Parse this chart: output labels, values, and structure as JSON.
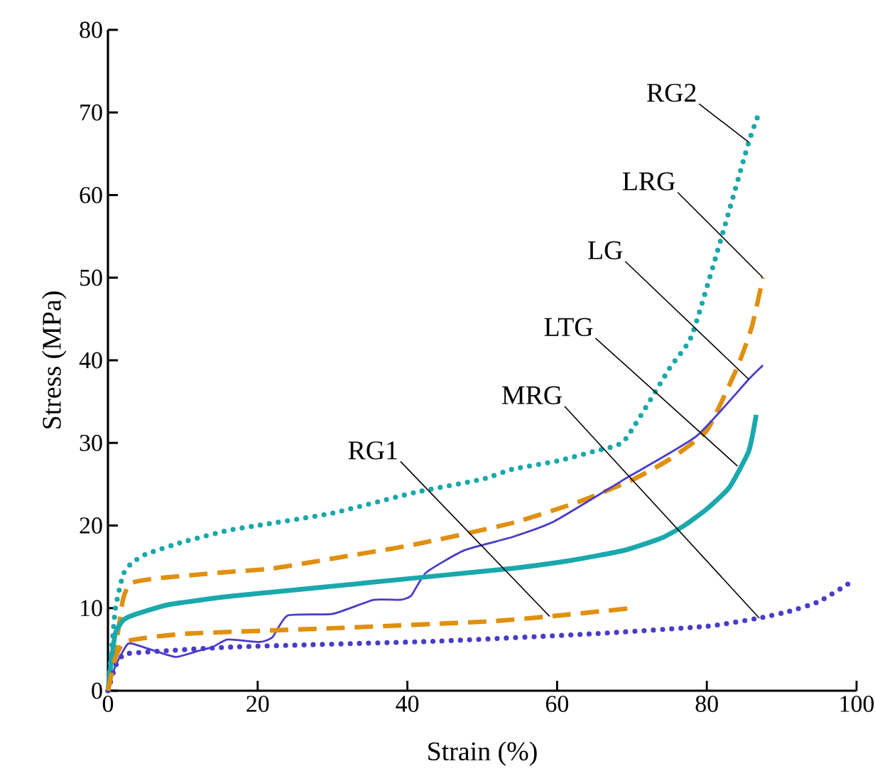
{
  "chart_data": {
    "type": "line",
    "xlabel": "Strain (%)",
    "ylabel": "Stress (MPa)",
    "xlim": [
      0,
      100
    ],
    "ylim": [
      0,
      80
    ],
    "xticks": [
      0,
      20,
      40,
      60,
      80,
      100
    ],
    "yticks": [
      0,
      10,
      20,
      30,
      40,
      50,
      60,
      70,
      80
    ],
    "grid": false,
    "series": [
      {
        "color": "#1aa8ac",
        "line_style": "dotted",
        "x": [
          0,
          0.5,
          1,
          2,
          3,
          5,
          10,
          16,
          20,
          30,
          41,
          50,
          54,
          60,
          65,
          69,
          75,
          78,
          82,
          85.6,
          87
        ],
        "values": [
          0,
          5,
          10,
          14,
          15.3,
          16.5,
          18,
          19.4,
          20,
          21.5,
          24,
          25.6,
          26.8,
          27.8,
          29,
          30.3,
          39,
          43,
          55,
          66.4,
          70
        ]
      },
      {
        "color": "#e0900f",
        "line_style": "dashed",
        "x": [
          0,
          1,
          2,
          3,
          6.5,
          15,
          22,
          30,
          41,
          54,
          63,
          70,
          75,
          80,
          84,
          86,
          87.5
        ],
        "values": [
          0,
          5,
          11,
          13,
          13.6,
          14.3,
          14.8,
          16,
          17.7,
          20.3,
          22.9,
          25.5,
          28,
          31.5,
          39,
          44,
          50
        ]
      },
      {
        "color": "#4a3cc8",
        "line_style": "solid",
        "x": [
          0,
          1,
          2.7,
          5,
          9,
          12,
          14,
          16,
          20.3,
          22,
          24,
          30,
          35.5,
          39,
          40.5,
          42.5,
          47.6,
          54,
          59.6,
          69,
          78.6,
          85.6,
          87.5
        ],
        "values": [
          0,
          3,
          5.7,
          5.2,
          4.1,
          4.8,
          5.3,
          6.2,
          5.9,
          6.5,
          9.1,
          9.3,
          11,
          11,
          11.5,
          14.3,
          17,
          18.6,
          20.5,
          25.6,
          30.8,
          37.7,
          39.4
        ]
      },
      {
        "color": "#1aa8ac",
        "line_style": "solid",
        "x": [
          0,
          0.5,
          1,
          2,
          3.2,
          8,
          16,
          25,
          35,
          45,
          54,
          62,
          69,
          74,
          77,
          80,
          83,
          85.6,
          86.6
        ],
        "values": [
          0,
          4,
          7,
          8.5,
          9.1,
          10.4,
          11.4,
          12.2,
          13.1,
          14,
          14.8,
          15.8,
          17,
          18.5,
          20,
          22,
          24.6,
          29,
          33.4
        ]
      },
      {
        "color": "#4a3cc8",
        "line_style": "dotted",
        "x": [
          0,
          1,
          2,
          3.8,
          17,
          44,
          65,
          80,
          87,
          91,
          95,
          99
        ],
        "values": [
          0,
          3,
          4.3,
          4.6,
          5.3,
          6,
          6.9,
          7.8,
          8.8,
          9.6,
          10.8,
          13
        ]
      },
      {
        "color": "#e0900f",
        "line_style": "dashed",
        "x": [
          0,
          1,
          2.5,
          10.4,
          31,
          51,
          59,
          70
        ],
        "values": [
          0,
          4,
          6,
          6.9,
          7.6,
          8.4,
          9,
          10
        ]
      }
    ],
    "annotations": [
      {
        "text": "RG2",
        "x": 85.6,
        "y": 66.4
      },
      {
        "text": "LRG",
        "x": 87.5,
        "y": 50
      },
      {
        "text": "LG",
        "x": 85.6,
        "y": 37.7
      },
      {
        "text": "LTG",
        "x": 84.1,
        "y": 27.2
      },
      {
        "text": "MRG",
        "x": 87,
        "y": 8.8
      },
      {
        "text": "RG1",
        "x": 59,
        "y": 9
      }
    ]
  }
}
